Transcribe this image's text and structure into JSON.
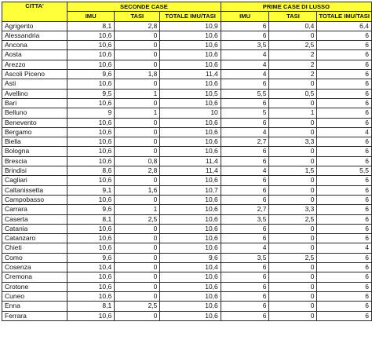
{
  "headers": {
    "city": "CITTA'",
    "group_second": "SECONDE CASE",
    "group_first": "PRIME CASE DI LUSSO",
    "imu": "IMU",
    "tasi": "TASI",
    "totale": "TOTALE IMU/TASI"
  },
  "rows": [
    {
      "city": "Agrigento",
      "s_imu": "8,1",
      "s_tasi": "2,8",
      "s_tot": "10,9",
      "p_imu": "6",
      "p_tasi": "0,4",
      "p_tot": "6,4"
    },
    {
      "city": "Alessandria",
      "s_imu": "10,6",
      "s_tasi": "0",
      "s_tot": "10,6",
      "p_imu": "6",
      "p_tasi": "0",
      "p_tot": "6"
    },
    {
      "city": "Ancona",
      "s_imu": "10,6",
      "s_tasi": "0",
      "s_tot": "10,6",
      "p_imu": "3,5",
      "p_tasi": "2,5",
      "p_tot": "6"
    },
    {
      "city": "Aosta",
      "s_imu": "10,6",
      "s_tasi": "0",
      "s_tot": "10,6",
      "p_imu": "4",
      "p_tasi": "2",
      "p_tot": "6"
    },
    {
      "city": "Arezzo",
      "s_imu": "10,6",
      "s_tasi": "0",
      "s_tot": "10,6",
      "p_imu": "4",
      "p_tasi": "2",
      "p_tot": "6"
    },
    {
      "city": "Ascoli Piceno",
      "s_imu": "9,6",
      "s_tasi": "1,8",
      "s_tot": "11,4",
      "p_imu": "4",
      "p_tasi": "2",
      "p_tot": "6"
    },
    {
      "city": "Asti",
      "s_imu": "10,6",
      "s_tasi": "0",
      "s_tot": "10,6",
      "p_imu": "6",
      "p_tasi": "0",
      "p_tot": "6"
    },
    {
      "city": "Avellino",
      "s_imu": "9,5",
      "s_tasi": "1",
      "s_tot": "10,5",
      "p_imu": "5,5",
      "p_tasi": "0,5",
      "p_tot": "6"
    },
    {
      "city": "Bari",
      "s_imu": "10,6",
      "s_tasi": "0",
      "s_tot": "10,6",
      "p_imu": "6",
      "p_tasi": "0",
      "p_tot": "6"
    },
    {
      "city": "Belluno",
      "s_imu": "9",
      "s_tasi": "1",
      "s_tot": "10",
      "p_imu": "5",
      "p_tasi": "1",
      "p_tot": "6"
    },
    {
      "city": "Benevento",
      "s_imu": "10,6",
      "s_tasi": "0",
      "s_tot": "10,6",
      "p_imu": "6",
      "p_tasi": "0",
      "p_tot": "6"
    },
    {
      "city": "Bergamo",
      "s_imu": "10,6",
      "s_tasi": "0",
      "s_tot": "10,6",
      "p_imu": "4",
      "p_tasi": "0",
      "p_tot": "4"
    },
    {
      "city": "Biella",
      "s_imu": "10,6",
      "s_tasi": "0",
      "s_tot": "10,6",
      "p_imu": "2,7",
      "p_tasi": "3,3",
      "p_tot": "6"
    },
    {
      "city": "Bologna",
      "s_imu": "10,6",
      "s_tasi": "0",
      "s_tot": "10,6",
      "p_imu": "6",
      "p_tasi": "0",
      "p_tot": "6"
    },
    {
      "city": "Brescia",
      "s_imu": "10,6",
      "s_tasi": "0,8",
      "s_tot": "11,4",
      "p_imu": "6",
      "p_tasi": "0",
      "p_tot": "6"
    },
    {
      "city": "Brindisi",
      "s_imu": "8,6",
      "s_tasi": "2,8",
      "s_tot": "11,4",
      "p_imu": "4",
      "p_tasi": "1,5",
      "p_tot": "5,5"
    },
    {
      "city": "Cagliari",
      "s_imu": "10,6",
      "s_tasi": "0",
      "s_tot": "10,6",
      "p_imu": "6",
      "p_tasi": "0",
      "p_tot": "6"
    },
    {
      "city": "Caltanissetta",
      "s_imu": "9,1",
      "s_tasi": "1,6",
      "s_tot": "10,7",
      "p_imu": "6",
      "p_tasi": "0",
      "p_tot": "6"
    },
    {
      "city": "Campobasso",
      "s_imu": "10,6",
      "s_tasi": "0",
      "s_tot": "10,6",
      "p_imu": "6",
      "p_tasi": "0",
      "p_tot": "6"
    },
    {
      "city": "Carrara",
      "s_imu": "9,6",
      "s_tasi": "1",
      "s_tot": "10,6",
      "p_imu": "2,7",
      "p_tasi": "3,3",
      "p_tot": "6"
    },
    {
      "city": "Caserta",
      "s_imu": "8,1",
      "s_tasi": "2,5",
      "s_tot": "10,6",
      "p_imu": "3,5",
      "p_tasi": "2,5",
      "p_tot": "6"
    },
    {
      "city": "Catania",
      "s_imu": "10,6",
      "s_tasi": "0",
      "s_tot": "10,6",
      "p_imu": "6",
      "p_tasi": "0",
      "p_tot": "6"
    },
    {
      "city": "Catanzaro",
      "s_imu": "10,6",
      "s_tasi": "0",
      "s_tot": "10,6",
      "p_imu": "6",
      "p_tasi": "0",
      "p_tot": "6"
    },
    {
      "city": "Chieti",
      "s_imu": "10,6",
      "s_tasi": "0",
      "s_tot": "10,6",
      "p_imu": "4",
      "p_tasi": "0",
      "p_tot": "4"
    },
    {
      "city": "Como",
      "s_imu": "9,6",
      "s_tasi": "0",
      "s_tot": "9,6",
      "p_imu": "3,5",
      "p_tasi": "2,5",
      "p_tot": "6"
    },
    {
      "city": "Cosenza",
      "s_imu": "10,4",
      "s_tasi": "0",
      "s_tot": "10,4",
      "p_imu": "6",
      "p_tasi": "0",
      "p_tot": "6"
    },
    {
      "city": "Cremona",
      "s_imu": "10,6",
      "s_tasi": "0",
      "s_tot": "10,6",
      "p_imu": "6",
      "p_tasi": "0",
      "p_tot": "6"
    },
    {
      "city": "Crotone",
      "s_imu": "10,6",
      "s_tasi": "0",
      "s_tot": "10,6",
      "p_imu": "6",
      "p_tasi": "0",
      "p_tot": "6"
    },
    {
      "city": "Cuneo",
      "s_imu": "10,6",
      "s_tasi": "0",
      "s_tot": "10,6",
      "p_imu": "6",
      "p_tasi": "0",
      "p_tot": "6"
    },
    {
      "city": "Enna",
      "s_imu": "8,1",
      "s_tasi": "2,5",
      "s_tot": "10,6",
      "p_imu": "6",
      "p_tasi": "0",
      "p_tot": "6"
    },
    {
      "city": "Ferrara",
      "s_imu": "10,6",
      "s_tasi": "0",
      "s_tot": "10,6",
      "p_imu": "6",
      "p_tasi": "0",
      "p_tot": "6"
    }
  ]
}
